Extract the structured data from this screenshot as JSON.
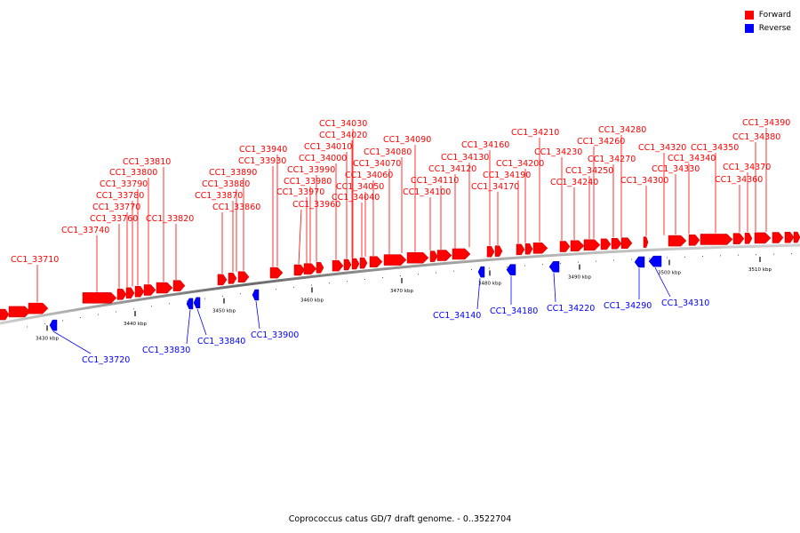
{
  "legend": {
    "forward_label": "Forward",
    "reverse_label": "Reverse",
    "forward_color": "#ff0000",
    "reverse_color": "#0000ff"
  },
  "caption": "Coprococcus catus GD/7 draft genome. - 0..3522704",
  "axis": {
    "ticks": [
      {
        "kbp": 3430,
        "label": "3430 kbp"
      },
      {
        "kbp": 3440,
        "label": "3440 kbp"
      },
      {
        "kbp": 3450,
        "label": "3450 kbp"
      },
      {
        "kbp": 3460,
        "label": "3460 kbp"
      },
      {
        "kbp": 3470,
        "label": "3470 kbp"
      },
      {
        "kbp": 3480,
        "label": "3480 kbp"
      },
      {
        "kbp": 3490,
        "label": "3490 kbp"
      },
      {
        "kbp": 3500,
        "label": "3500 kbp"
      },
      {
        "kbp": 3510,
        "label": "3510 kbp"
      }
    ]
  },
  "genes": {
    "forward": [
      "CC1_33710",
      "CC1_33740",
      "CC1_33760",
      "CC1_33770",
      "CC1_33780",
      "CC1_33790",
      "CC1_33800",
      "CC1_33810",
      "CC1_33820",
      "CC1_33860",
      "CC1_33870",
      "CC1_33880",
      "CC1_33890",
      "CC1_33930",
      "CC1_33940",
      "CC1_33960",
      "CC1_33970",
      "CC1_33980",
      "CC1_33990",
      "CC1_34000",
      "CC1_34010",
      "CC1_34020",
      "CC1_34030",
      "CC1_34040",
      "CC1_34050",
      "CC1_34060",
      "CC1_34070",
      "CC1_34080",
      "CC1_34090",
      "CC1_34100",
      "CC1_34110",
      "CC1_34120",
      "CC1_34130",
      "CC1_34160",
      "CC1_34170",
      "CC1_34190",
      "CC1_34200",
      "CC1_34210",
      "CC1_34230",
      "CC1_34240",
      "CC1_34250",
      "CC1_34260",
      "CC1_34270",
      "CC1_34280",
      "CC1_34300",
      "CC1_34320",
      "CC1_34330",
      "CC1_34340",
      "CC1_34350",
      "CC1_34360",
      "CC1_34370",
      "CC1_34380",
      "CC1_34390"
    ],
    "reverse": [
      "CC1_33720",
      "CC1_33830",
      "CC1_33840",
      "CC1_33900",
      "CC1_34140",
      "CC1_34180",
      "CC1_34220",
      "CC1_34290",
      "CC1_34310"
    ]
  }
}
